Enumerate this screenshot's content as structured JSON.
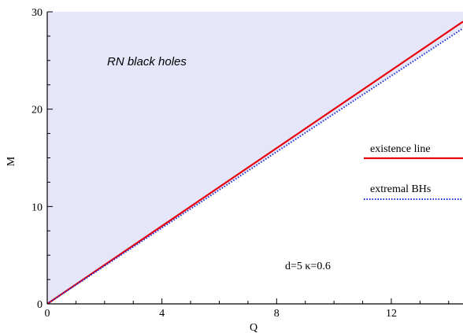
{
  "chart_data": {
    "type": "line",
    "xlabel": "Q",
    "ylabel": "M",
    "xlim": [
      0,
      14.5
    ],
    "ylim": [
      0,
      30
    ],
    "xticks": [
      0,
      4,
      8,
      12
    ],
    "yticks": [
      0,
      10,
      20,
      30
    ],
    "grid": false,
    "legend_position": "right",
    "annotations": {
      "region": "RN black holes",
      "params": "d=5  κ=0.6"
    },
    "shaded_region": {
      "label": "RN black holes",
      "color": "#e6e6fa",
      "bounded_below_by": "extremal BHs"
    },
    "series": [
      {
        "name": "existence line",
        "color": "#e8000b",
        "style": "solid",
        "x": [
          0,
          14.5
        ],
        "y": [
          0,
          29.0
        ]
      },
      {
        "name": "extremal BHs",
        "color": "#1a2fd6",
        "style": "dotted",
        "x": [
          0,
          14.5
        ],
        "y": [
          0,
          28.3
        ]
      }
    ]
  }
}
